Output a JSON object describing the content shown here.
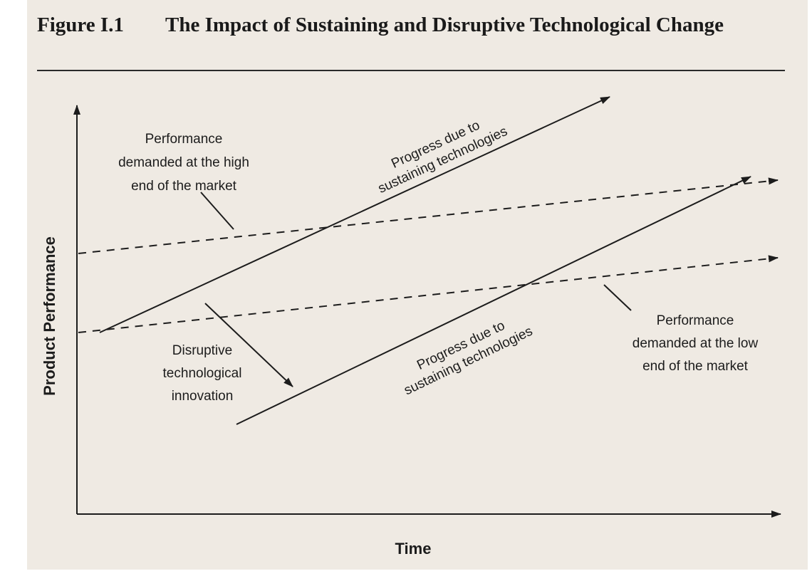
{
  "figure": {
    "number": "Figure I.1",
    "title": "The Impact of Sustaining and Disruptive Technological Change"
  },
  "axes": {
    "x_label": "Time",
    "y_label": "Product Performance"
  },
  "labels": {
    "high_end_demand": [
      "Performance",
      "demanded at the high",
      "end of the market"
    ],
    "low_end_demand": [
      "Performance",
      "demanded at the low",
      "end of the market"
    ],
    "upper_progress": [
      "Progress due to",
      "sustaining technologies"
    ],
    "lower_progress": [
      "Progress due to",
      "sustaining technologies"
    ],
    "disruptive": [
      "Disruptive",
      "technological",
      "innovation"
    ]
  }
}
